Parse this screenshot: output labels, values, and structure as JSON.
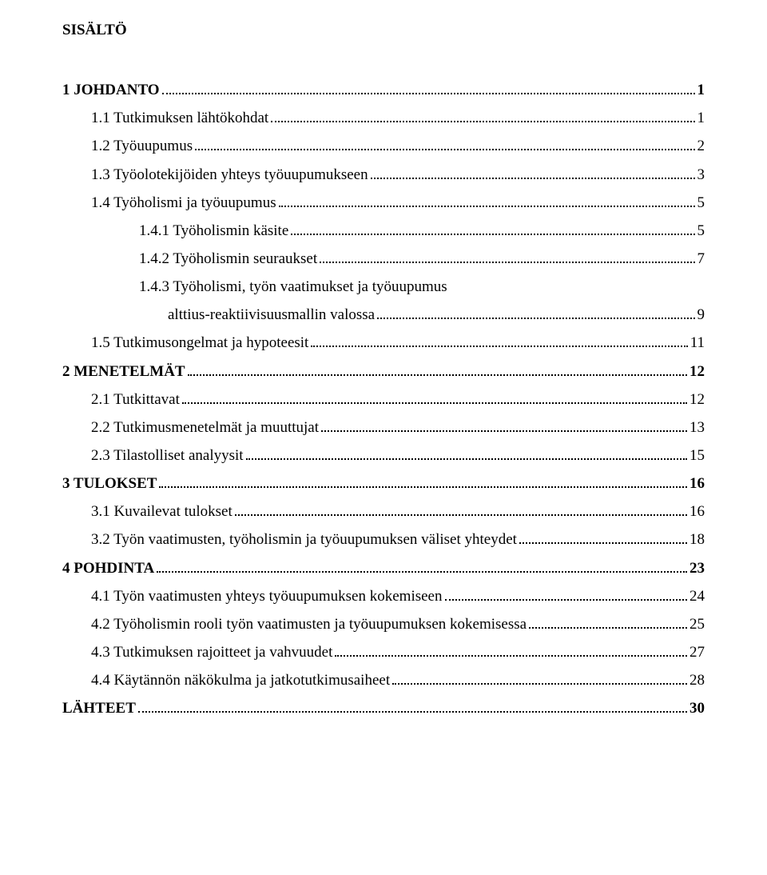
{
  "title": "SISÄLTÖ",
  "toc": [
    {
      "label": "1 JOHDANTO",
      "page": "1",
      "level": 1,
      "bold": true
    },
    {
      "label": "1.1 Tutkimuksen lähtökohdat",
      "page": "1",
      "level": 2,
      "bold": false
    },
    {
      "label": "1.2 Työuupumus",
      "page": "2",
      "level": 2,
      "bold": false
    },
    {
      "label": "1.3 Työolotekijöiden yhteys työuupumukseen",
      "page": "3",
      "level": 2,
      "bold": false
    },
    {
      "label": "1.4 Työholismi ja työuupumus",
      "page": "5",
      "level": 2,
      "bold": false
    },
    {
      "label": "1.4.1 Työholismin käsite",
      "page": "5",
      "level": 3,
      "bold": false
    },
    {
      "label": "1.4.2 Työholismin seuraukset",
      "page": "7",
      "level": 3,
      "bold": false
    },
    {
      "label": "1.4.3 Työholismi, työn vaatimukset ja työuupumus",
      "page": null,
      "level": 3,
      "bold": false
    },
    {
      "label": "alttius-reaktiivisuusmallin valossa",
      "page": "9",
      "level": 4,
      "bold": false
    },
    {
      "label": "1.5 Tutkimusongelmat ja hypoteesit",
      "page": "11",
      "level": 2,
      "bold": false
    },
    {
      "label": "2 MENETELMÄT",
      "page": "12",
      "level": 1,
      "bold": true
    },
    {
      "label": "2.1 Tutkittavat",
      "page": "12",
      "level": 2,
      "bold": false
    },
    {
      "label": "2.2 Tutkimusmenetelmät ja muuttujat",
      "page": "13",
      "level": 2,
      "bold": false
    },
    {
      "label": "2.3 Tilastolliset analyysit",
      "page": "15",
      "level": 2,
      "bold": false
    },
    {
      "label": "3 TULOKSET",
      "page": "16",
      "level": 1,
      "bold": true
    },
    {
      "label": "3.1 Kuvailevat tulokset",
      "page": "16",
      "level": 2,
      "bold": false
    },
    {
      "label": "3.2 Työn vaatimusten, työholismin ja työuupumuksen väliset yhteydet",
      "page": "18",
      "level": 2,
      "bold": false
    },
    {
      "label": "4 POHDINTA",
      "page": "23",
      "level": 1,
      "bold": true
    },
    {
      "label": "4.1 Työn vaatimusten yhteys työuupumuksen kokemiseen",
      "page": "24",
      "level": 2,
      "bold": false
    },
    {
      "label": "4.2 Työholismin rooli työn vaatimusten ja työuupumuksen kokemisessa",
      "page": "25",
      "level": 2,
      "bold": false
    },
    {
      "label": "4.3 Tutkimuksen rajoitteet ja vahvuudet",
      "page": "27",
      "level": 2,
      "bold": false
    },
    {
      "label": "4.4 Käytännön näkökulma ja jatkotutkimusaiheet",
      "page": "28",
      "level": 2,
      "bold": false
    },
    {
      "label": "LÄHTEET",
      "page": "30",
      "level": 1,
      "bold": true
    }
  ]
}
